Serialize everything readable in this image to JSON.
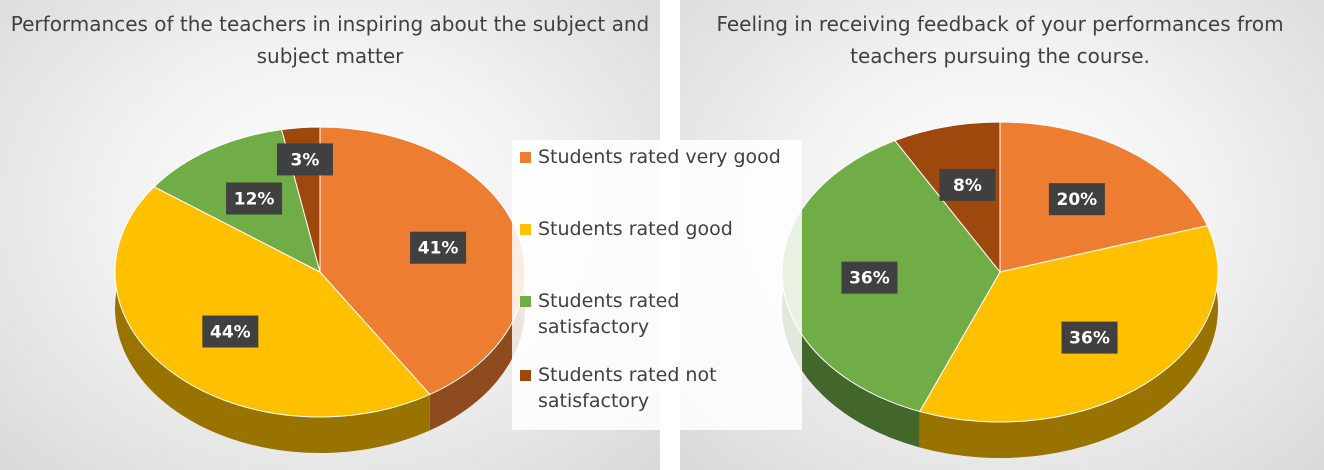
{
  "legend": {
    "labels": [
      "Students rated very good",
      "Students rated good",
      "Students rated satisfactory",
      "Students rated not satisfactory"
    ],
    "colors": [
      "#ed7d31",
      "#ffc000",
      "#70ad47",
      "#9e480e"
    ]
  },
  "chart_data": [
    {
      "type": "pie",
      "title": "Performances of the teachers in inspiring about the subject and subject matter",
      "values": [
        41,
        44,
        12,
        3
      ],
      "value_labels": [
        "41%",
        "44%",
        "12%",
        "3%"
      ]
    },
    {
      "type": "pie",
      "title": "Feeling in receiving feedback of your performances from teachers pursuing the course.",
      "values": [
        20,
        36,
        36,
        8
      ],
      "value_labels": [
        "20%",
        "36%",
        "36%",
        "8%"
      ]
    }
  ]
}
